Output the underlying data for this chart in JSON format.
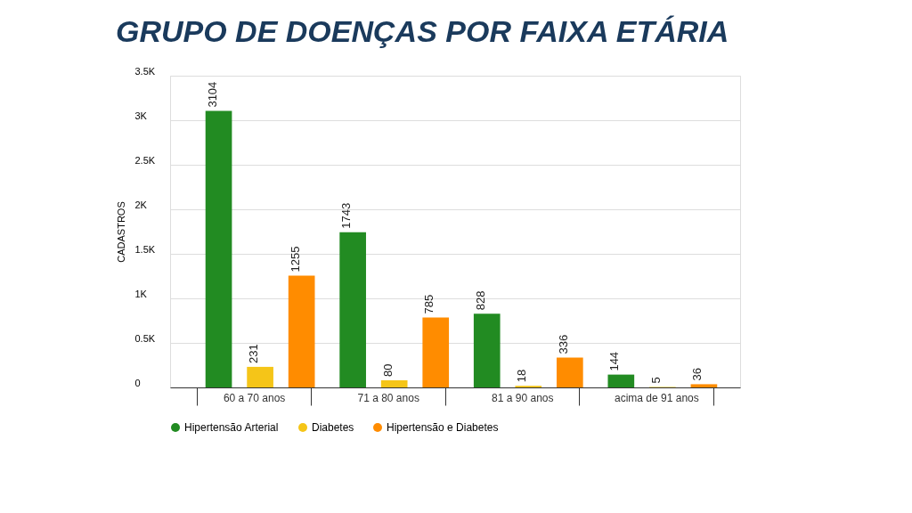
{
  "chart_data": {
    "type": "bar",
    "title": "GRUPO DE DOENÇAS POR FAIXA ETÁRIA",
    "ylabel": "CADASTROS",
    "categories": [
      "60 a 70 anos",
      "71 a 80 anos",
      "81 a 90 anos",
      "acima de 91 anos"
    ],
    "series": [
      {
        "name": "Hipertensão Arterial",
        "color": "#228b22",
        "values": [
          3104,
          1743,
          828,
          144
        ]
      },
      {
        "name": "Diabetes",
        "color": "#f5c518",
        "values": [
          231,
          80,
          18,
          5
        ]
      },
      {
        "name": "Hipertensão e Diabetes",
        "color": "#ff8c00",
        "values": [
          1255,
          785,
          336,
          36
        ]
      }
    ],
    "ylim": [
      0,
      3500
    ],
    "yticks": [
      0,
      {
        "value": 500,
        "label": "0.5K"
      },
      {
        "value": 1000,
        "label": "1K"
      },
      {
        "value": 1500,
        "label": "1.5K"
      },
      {
        "value": 2000,
        "label": "2K"
      },
      {
        "value": 2500,
        "label": "2.5K"
      },
      {
        "value": 3000,
        "label": "3K"
      },
      {
        "value": 3500,
        "label": "3.5K"
      }
    ],
    "grid": "y",
    "legend": "bottom",
    "data_labels": true
  }
}
